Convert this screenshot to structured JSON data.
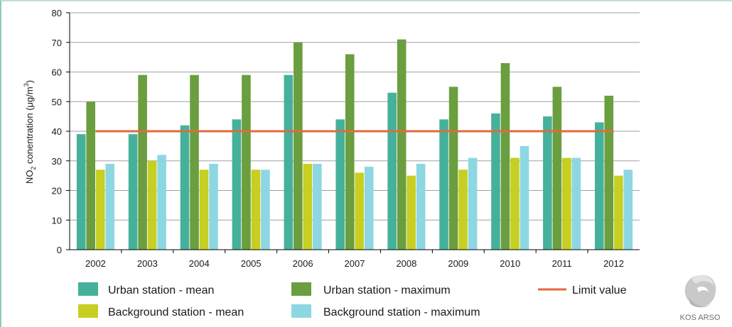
{
  "chart_data": {
    "type": "bar",
    "categories": [
      "2002",
      "2003",
      "2004",
      "2005",
      "2006",
      "2007",
      "2008",
      "2009",
      "2010",
      "2011",
      "2012"
    ],
    "series": [
      {
        "name": "Urban station - mean",
        "color": "#46b19b",
        "values": [
          39,
          39,
          42,
          44,
          59,
          44,
          53,
          44,
          46,
          45,
          43
        ]
      },
      {
        "name": "Urban station - maximum",
        "color": "#6b9e3f",
        "values": [
          50,
          59,
          59,
          59,
          70,
          66,
          71,
          55,
          63,
          55,
          52
        ]
      },
      {
        "name": "Background station - mean",
        "color": "#c6cf22",
        "values": [
          27,
          30,
          27,
          27,
          29,
          26,
          25,
          27,
          31,
          31,
          25
        ]
      },
      {
        "name": "Background station - maximum",
        "color": "#8dd7e2",
        "values": [
          29,
          32,
          29,
          27,
          29,
          28,
          29,
          31,
          35,
          31,
          27
        ]
      }
    ],
    "reference_line": {
      "name": "Limit value",
      "value": 40,
      "color": "#e06a3e"
    },
    "ylabel_main": "NO",
    "ylabel_sub": "2",
    "ylabel_rest": " conentration (μg/m",
    "ylabel_sup": "3",
    "ylabel_end": ")",
    "ylim": [
      0,
      80
    ],
    "yticks": [
      0,
      10,
      20,
      30,
      40,
      50,
      60,
      70,
      80
    ],
    "grid": true,
    "legend_position": "bottom"
  },
  "logo": {
    "text": "KOS ARSO",
    "icon": "arso-logo-icon"
  }
}
